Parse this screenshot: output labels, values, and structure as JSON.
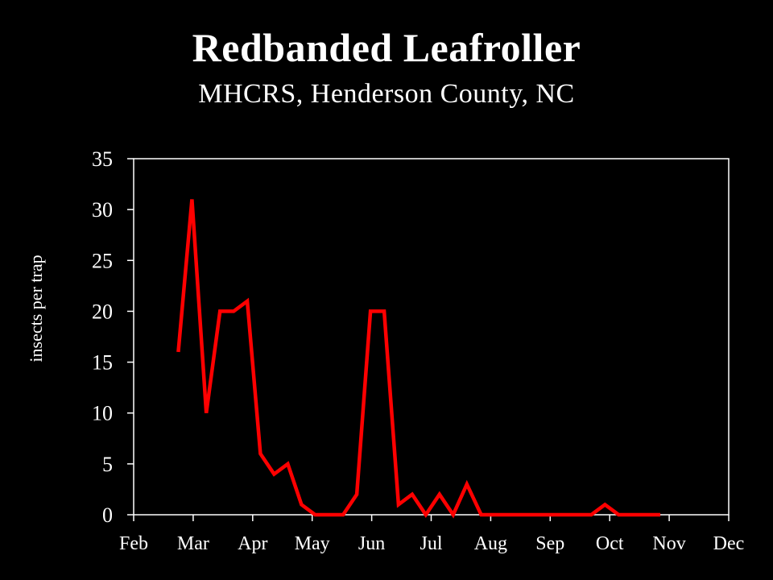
{
  "title": "Redbanded Leafroller",
  "subtitle": "MHCRS, Henderson County, NC",
  "colors": {
    "background": "#000000",
    "text": "#ffffff",
    "series": "#ff0000",
    "axis": "#ffffff"
  },
  "chart_data": {
    "type": "line",
    "ylabel": "insects per trap",
    "xlabel": "",
    "ylim": [
      0,
      35
    ],
    "yticks": [
      0,
      5,
      10,
      15,
      20,
      25,
      30,
      35
    ],
    "xticks": [
      "Feb",
      "Mar",
      "Apr",
      "May",
      "Jun",
      "Jul",
      "Aug",
      "Sep",
      "Oct",
      "Nov",
      "Dec"
    ],
    "xlim_months": [
      0,
      10
    ],
    "grid": false,
    "legend": "none",
    "series": [
      {
        "x_months": [
          0.75,
          0.98,
          1.22,
          1.45,
          1.68,
          1.91,
          2.13,
          2.36,
          2.59,
          2.82,
          3.05,
          3.29,
          3.52,
          3.75,
          3.98,
          4.21,
          4.45,
          4.68,
          4.91,
          5.14,
          5.37,
          5.6,
          5.84,
          6.07,
          6.3,
          6.53,
          6.76,
          7.0,
          7.23,
          7.46,
          7.69,
          7.92,
          8.15,
          8.38,
          8.62,
          8.85
        ],
        "values": [
          16,
          31,
          10,
          20,
          20,
          21,
          6,
          4,
          5,
          1,
          0,
          0,
          0,
          2,
          20,
          20,
          1,
          2,
          0,
          2,
          0,
          3,
          0,
          0,
          0,
          0,
          0,
          0,
          0,
          0,
          0,
          1,
          0,
          0,
          0,
          0
        ]
      }
    ]
  }
}
